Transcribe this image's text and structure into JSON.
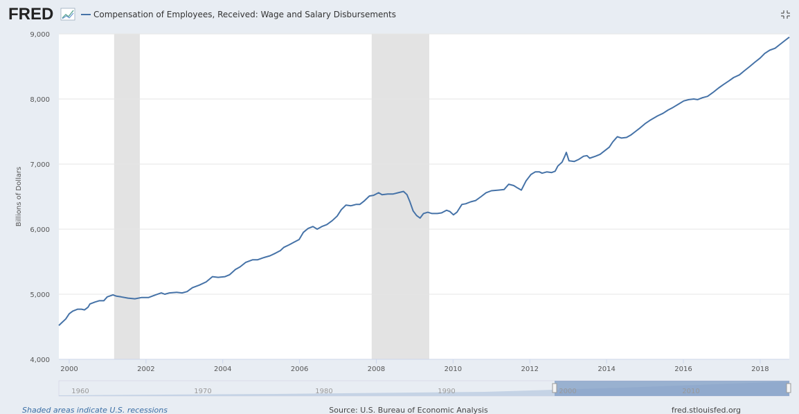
{
  "logo": "FRED",
  "chart_data": {
    "type": "line",
    "ylabel": "Billions of Dollars",
    "series": [
      {
        "name": "Compensation of Employees, Received: Wage and Salary Disbursements",
        "color": "#4572a7",
        "x": [
          1999.73,
          1999.82,
          1999.91,
          2000.0,
          2000.09,
          2000.22,
          2000.32,
          2000.4,
          2000.49,
          2000.54,
          2000.67,
          2000.78,
          2000.9,
          2000.99,
          2001.14,
          2001.23,
          2001.35,
          2001.53,
          2001.71,
          2001.89,
          2002.07,
          2002.25,
          2002.4,
          2002.49,
          2002.61,
          2002.8,
          2002.94,
          2003.07,
          2003.21,
          2003.39,
          2003.57,
          2003.73,
          2003.88,
          2004.06,
          2004.18,
          2004.33,
          2004.45,
          2004.6,
          2004.78,
          2004.91,
          2005.05,
          2005.23,
          2005.37,
          2005.5,
          2005.59,
          2005.73,
          2005.86,
          2005.99,
          2006.1,
          2006.22,
          2006.35,
          2006.46,
          2006.58,
          2006.71,
          2006.85,
          2006.98,
          2007.09,
          2007.21,
          2007.34,
          2007.47,
          2007.57,
          2007.68,
          2007.82,
          2007.93,
          2008.06,
          2008.15,
          2008.3,
          2008.44,
          2008.57,
          2008.71,
          2008.8,
          2008.87,
          2008.96,
          2009.05,
          2009.14,
          2009.23,
          2009.34,
          2009.45,
          2009.59,
          2009.7,
          2009.83,
          2009.92,
          2010.01,
          2010.1,
          2010.23,
          2010.33,
          2010.46,
          2010.59,
          2010.73,
          2010.86,
          2011.0,
          2011.18,
          2011.33,
          2011.45,
          2011.58,
          2011.69,
          2011.78,
          2011.9,
          2012.03,
          2012.14,
          2012.25,
          2012.32,
          2012.44,
          2012.57,
          2012.66,
          2012.73,
          2012.84,
          2012.91,
          2012.95,
          2013.02,
          2013.16,
          2013.27,
          2013.4,
          2013.49,
          2013.56,
          2013.71,
          2013.83,
          2013.94,
          2014.07,
          2014.16,
          2014.28,
          2014.39,
          2014.52,
          2014.64,
          2014.75,
          2014.88,
          2015.0,
          2015.15,
          2015.33,
          2015.47,
          2015.6,
          2015.73,
          2015.87,
          2016.01,
          2016.14,
          2016.27,
          2016.37,
          2016.5,
          2016.63,
          2016.77,
          2016.92,
          2017.04,
          2017.19,
          2017.31,
          2017.46,
          2017.58,
          2017.73,
          2017.85,
          2018.0,
          2018.12,
          2018.25,
          2018.39,
          2018.52,
          2018.67,
          2018.76
        ],
        "values": [
          4520,
          4570,
          4620,
          4700,
          4740,
          4770,
          4770,
          4760,
          4800,
          4850,
          4880,
          4900,
          4900,
          4960,
          4990,
          4970,
          4960,
          4940,
          4930,
          4950,
          4950,
          4990,
          5020,
          5000,
          5020,
          5030,
          5020,
          5040,
          5100,
          5140,
          5190,
          5270,
          5260,
          5270,
          5300,
          5380,
          5420,
          5490,
          5530,
          5530,
          5560,
          5590,
          5630,
          5670,
          5720,
          5760,
          5800,
          5840,
          5950,
          6010,
          6040,
          6000,
          6040,
          6070,
          6130,
          6200,
          6300,
          6370,
          6360,
          6380,
          6380,
          6430,
          6510,
          6520,
          6560,
          6530,
          6540,
          6540,
          6560,
          6580,
          6530,
          6430,
          6280,
          6210,
          6170,
          6240,
          6260,
          6240,
          6240,
          6250,
          6290,
          6270,
          6220,
          6260,
          6380,
          6390,
          6420,
          6440,
          6500,
          6560,
          6590,
          6600,
          6610,
          6690,
          6670,
          6630,
          6600,
          6740,
          6840,
          6880,
          6880,
          6860,
          6880,
          6870,
          6890,
          6970,
          7030,
          7120,
          7180,
          7050,
          7040,
          7070,
          7120,
          7130,
          7090,
          7120,
          7150,
          7200,
          7260,
          7340,
          7420,
          7400,
          7410,
          7450,
          7500,
          7560,
          7620,
          7680,
          7740,
          7780,
          7830,
          7870,
          7920,
          7970,
          7990,
          8000,
          7990,
          8020,
          8040,
          8100,
          8170,
          8220,
          8280,
          8330,
          8370,
          8430,
          8500,
          8560,
          8630,
          8700,
          8750,
          8780,
          8840,
          8910,
          8950
        ]
      }
    ],
    "recessions": [
      [
        2001.17,
        2001.84
      ],
      [
        2007.88,
        2009.38
      ]
    ],
    "xlim": [
      1999.73,
      2018.76
    ],
    "xticks": [
      2000,
      2002,
      2004,
      2006,
      2008,
      2010,
      2012,
      2014,
      2016,
      2018
    ],
    "ylim": [
      4000,
      9000
    ],
    "yticks": [
      {
        "value": 4000,
        "label": "4,000"
      },
      {
        "value": 5000,
        "label": "5,000"
      },
      {
        "value": 6000,
        "label": "6,000"
      },
      {
        "value": 7000,
        "label": "7,000"
      },
      {
        "value": 8000,
        "label": "8,000"
      },
      {
        "value": 9000,
        "label": "9,000"
      }
    ],
    "grid": true,
    "navigator_labels": [
      "1960",
      "1970",
      "1980",
      "1990",
      "2000",
      "2010"
    ]
  },
  "footer": {
    "note": "Shaded areas indicate U.S. recessions",
    "source": "Source: U.S. Bureau of Economic Analysis",
    "site": "fred.stlouisfed.org"
  }
}
